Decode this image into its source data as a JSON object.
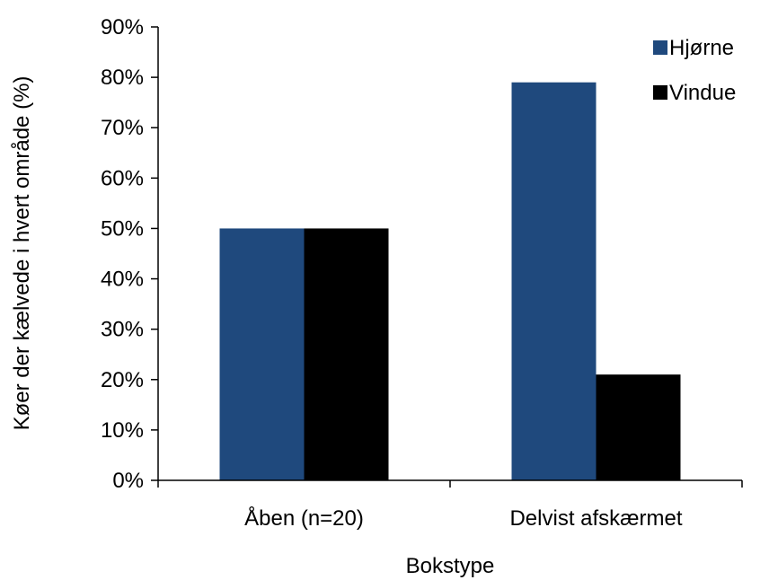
{
  "chart_data": {
    "type": "bar",
    "categories": [
      "Åben (n=20)",
      "Delvist afskærmet"
    ],
    "series": [
      {
        "name": "Hjørne",
        "values": [
          50,
          79
        ],
        "color": "#1f497d"
      },
      {
        "name": "Vindue",
        "values": [
          50,
          21
        ],
        "color": "#000000"
      }
    ],
    "xlabel": "Bokstype",
    "ylabel": "Køer der kælvede i hvert område (%)",
    "ylim": [
      0,
      90
    ],
    "yticks": [
      "0%",
      "10%",
      "20%",
      "30%",
      "40%",
      "50%",
      "60%",
      "70%",
      "80%",
      "90%"
    ],
    "grid": false,
    "legend_position": "top-right"
  }
}
